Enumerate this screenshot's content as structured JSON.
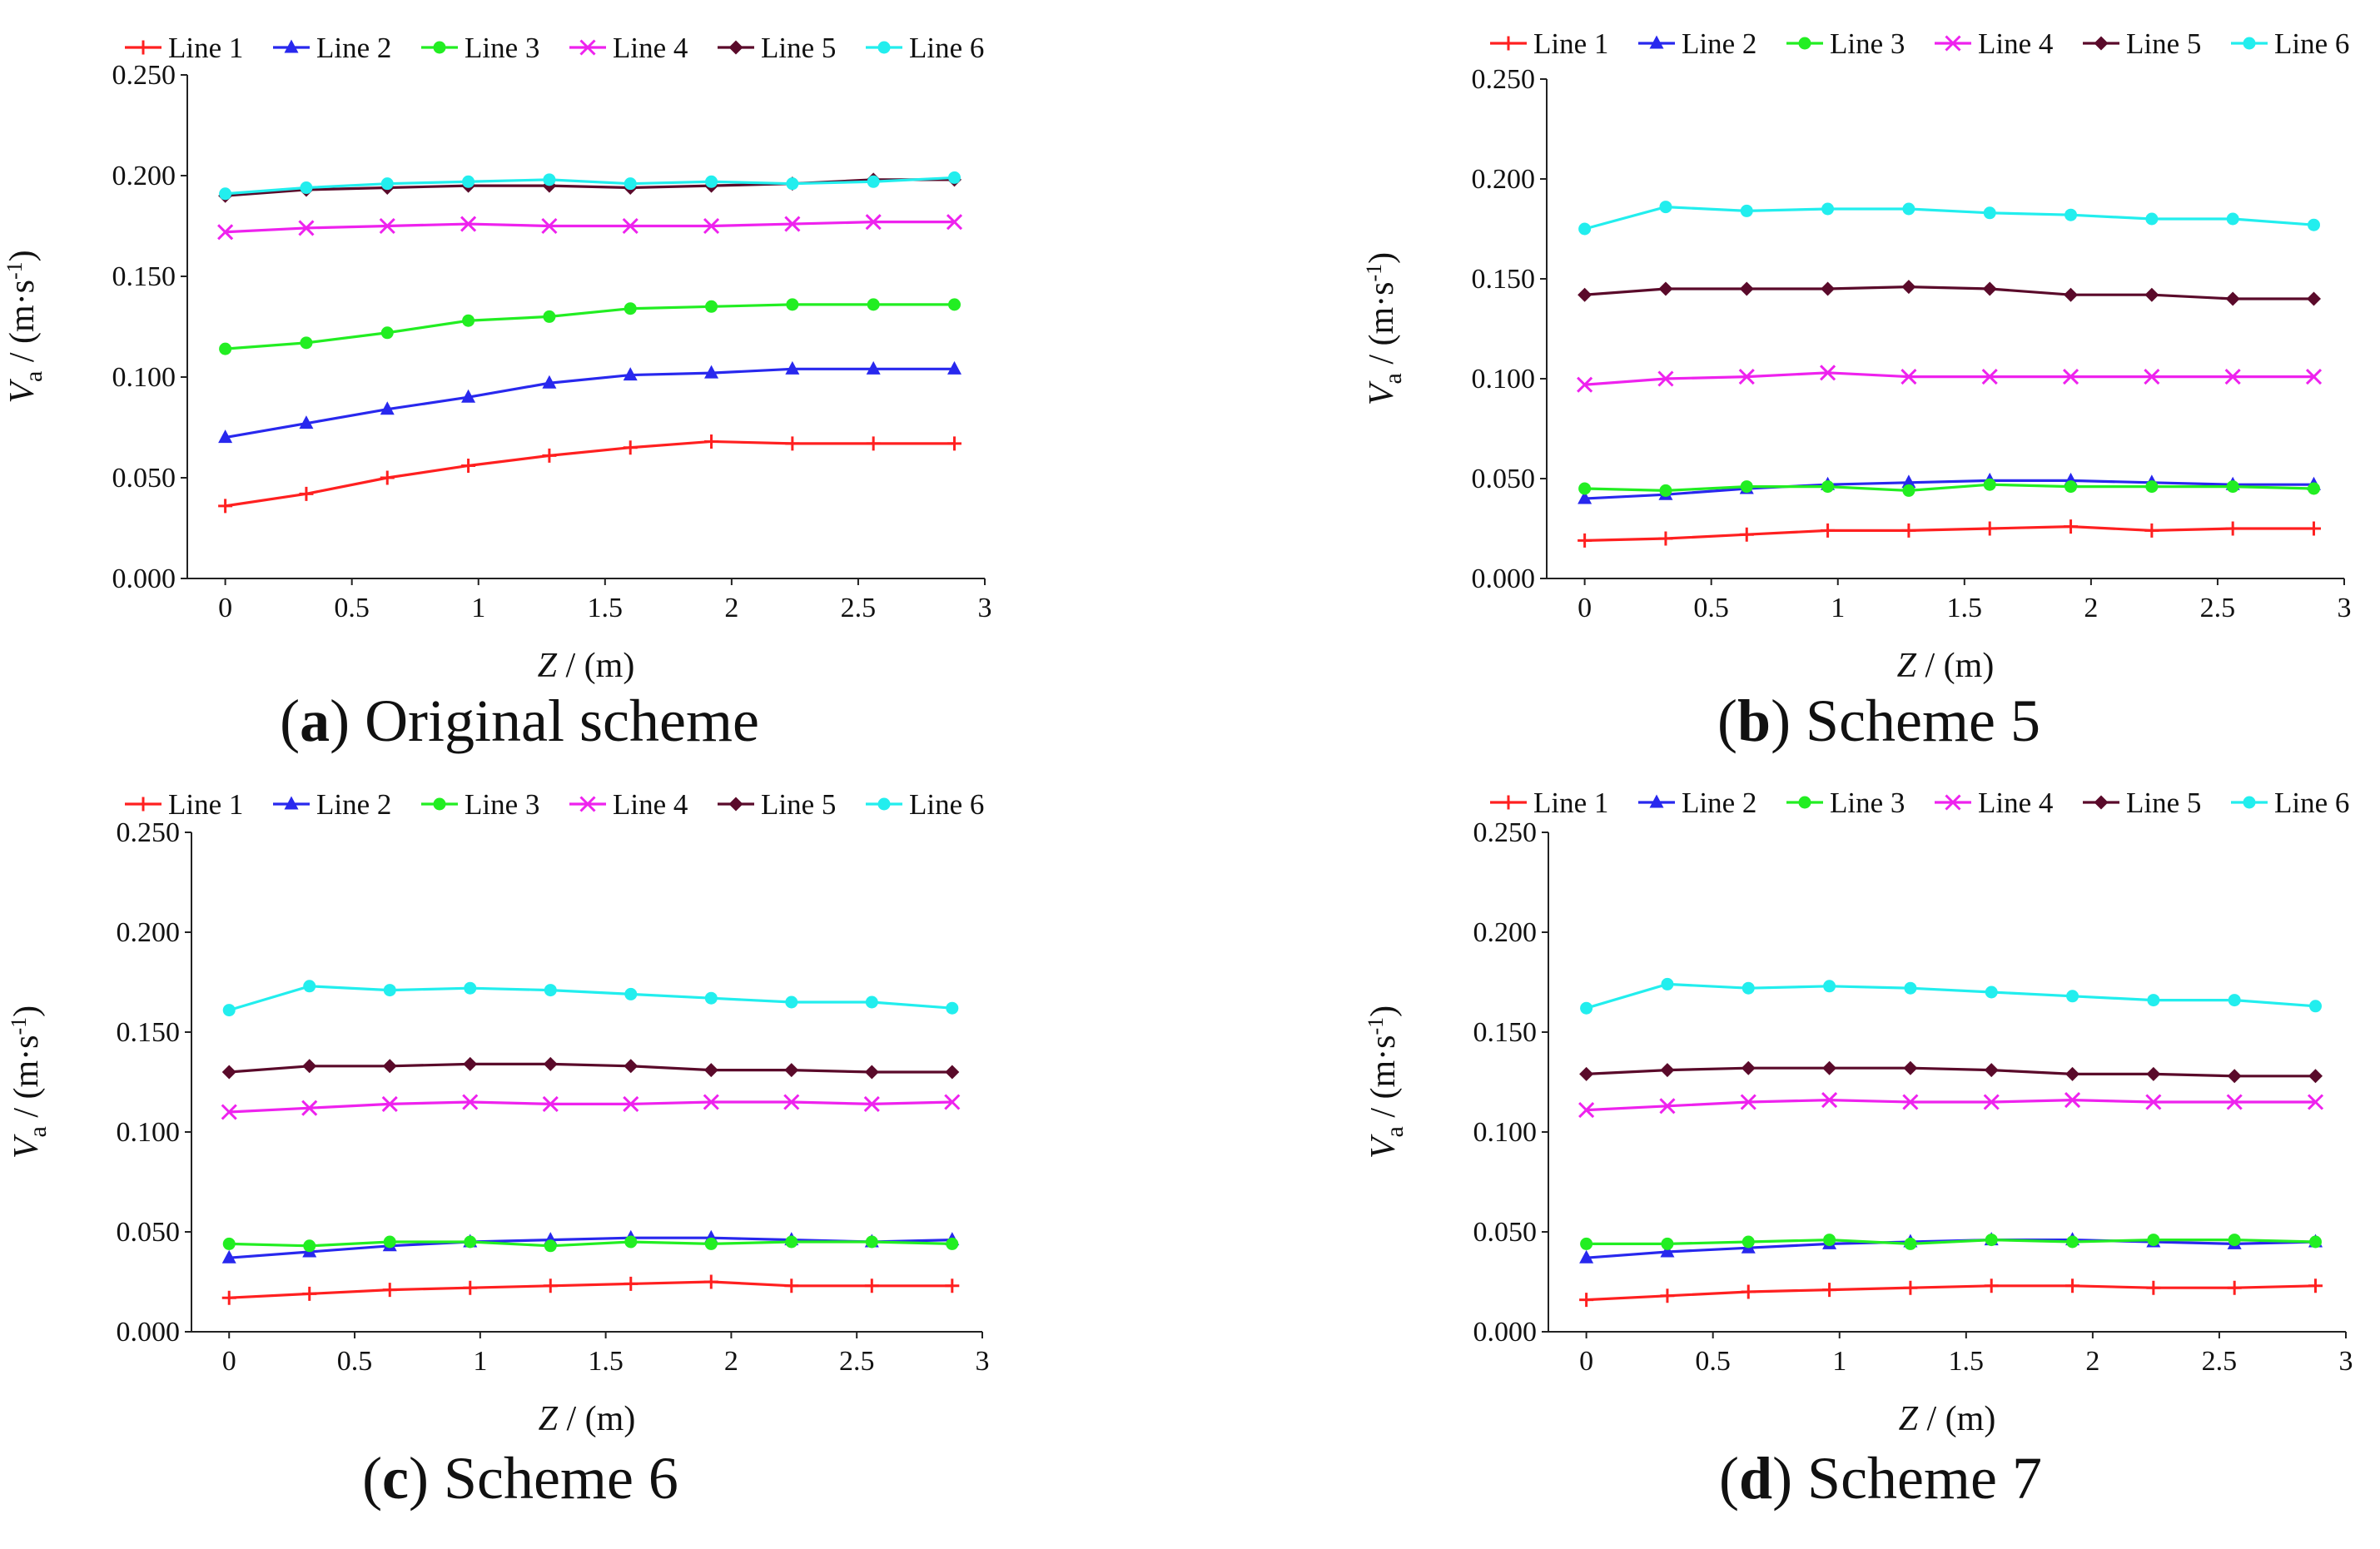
{
  "figure": {
    "panels": [
      {
        "letter": "a",
        "caption": "Original scheme"
      },
      {
        "letter": "b",
        "caption": "Scheme 5"
      },
      {
        "letter": "c",
        "caption": "Scheme 6"
      },
      {
        "letter": "d",
        "caption": "Scheme 7"
      }
    ],
    "xlabel_var": "Z",
    "xlabel_unit": " / (m)",
    "ylabel_var": "V",
    "ylabel_sub": "a",
    "ylabel_unit": " / (m·s",
    "ylabel_exp": "-1",
    "ylabel_close": ")"
  },
  "series_styles": [
    {
      "name": "Line 1",
      "color": "#ff2020",
      "marker": "plus"
    },
    {
      "name": "Line 2",
      "color": "#2828ee",
      "marker": "triangle"
    },
    {
      "name": "Line 3",
      "color": "#22ee22",
      "marker": "circle"
    },
    {
      "name": "Line 4",
      "color": "#ee22ee",
      "marker": "cross"
    },
    {
      "name": "Line 5",
      "color": "#5a0a2a",
      "marker": "diamond"
    },
    {
      "name": "Line 6",
      "color": "#22eeee",
      "marker": "circle"
    }
  ],
  "chart_data": [
    {
      "type": "line",
      "title": "(a) Original scheme",
      "xlabel": "Z / (m)",
      "ylabel": "Va / (m·s-1)",
      "xlim": [
        -0.15,
        3
      ],
      "ylim": [
        0,
        0.25
      ],
      "xticks": [
        0,
        0.5,
        1,
        1.5,
        2,
        2.5,
        3
      ],
      "xtick_labels": [
        "0",
        "0.5",
        "1",
        "1.5",
        "2",
        "2.5",
        "3"
      ],
      "yticks": [
        0,
        0.05,
        0.1,
        0.15,
        0.2,
        0.25
      ],
      "ytick_labels": [
        "0.000",
        "0.050",
        "0.100",
        "0.150",
        "0.200",
        "0.250"
      ],
      "legend": "top",
      "x": [
        0,
        0.32,
        0.64,
        0.96,
        1.28,
        1.6,
        1.92,
        2.24,
        2.56,
        2.88
      ],
      "series": [
        {
          "name": "Line 1",
          "values": [
            0.036,
            0.042,
            0.05,
            0.056,
            0.061,
            0.065,
            0.068,
            0.067,
            0.067,
            0.067
          ]
        },
        {
          "name": "Line 2",
          "values": [
            0.07,
            0.077,
            0.084,
            0.09,
            0.097,
            0.101,
            0.102,
            0.104,
            0.104,
            0.104
          ]
        },
        {
          "name": "Line 3",
          "values": [
            0.114,
            0.117,
            0.122,
            0.128,
            0.13,
            0.134,
            0.135,
            0.136,
            0.136,
            0.136
          ]
        },
        {
          "name": "Line 4",
          "values": [
            0.172,
            0.174,
            0.175,
            0.176,
            0.175,
            0.175,
            0.175,
            0.176,
            0.177,
            0.177
          ]
        },
        {
          "name": "Line 5",
          "values": [
            0.19,
            0.193,
            0.194,
            0.195,
            0.195,
            0.194,
            0.195,
            0.196,
            0.198,
            0.198
          ]
        },
        {
          "name": "Line 6",
          "values": [
            0.191,
            0.194,
            0.196,
            0.197,
            0.198,
            0.196,
            0.197,
            0.196,
            0.197,
            0.199
          ]
        }
      ]
    },
    {
      "type": "line",
      "title": "(b) Scheme 5",
      "xlabel": "Z / (m)",
      "ylabel": "Va / (m·s-1)",
      "xlim": [
        -0.15,
        3
      ],
      "ylim": [
        0,
        0.25
      ],
      "xticks": [
        0,
        0.5,
        1,
        1.5,
        2,
        2.5,
        3
      ],
      "xtick_labels": [
        "0",
        "0.5",
        "1",
        "1.5",
        "2",
        "2.5",
        "3"
      ],
      "yticks": [
        0,
        0.05,
        0.1,
        0.15,
        0.2,
        0.25
      ],
      "ytick_labels": [
        "0.000",
        "0.050",
        "0.100",
        "0.150",
        "0.200",
        "0.250"
      ],
      "legend": "top",
      "x": [
        0,
        0.32,
        0.64,
        0.96,
        1.28,
        1.6,
        1.92,
        2.24,
        2.56,
        2.88
      ],
      "series": [
        {
          "name": "Line 1",
          "values": [
            0.019,
            0.02,
            0.022,
            0.024,
            0.024,
            0.025,
            0.026,
            0.024,
            0.025,
            0.025
          ]
        },
        {
          "name": "Line 2",
          "values": [
            0.04,
            0.042,
            0.045,
            0.047,
            0.048,
            0.049,
            0.049,
            0.048,
            0.047,
            0.047
          ]
        },
        {
          "name": "Line 3",
          "values": [
            0.045,
            0.044,
            0.046,
            0.046,
            0.044,
            0.047,
            0.046,
            0.046,
            0.046,
            0.045
          ]
        },
        {
          "name": "Line 4",
          "values": [
            0.097,
            0.1,
            0.101,
            0.103,
            0.101,
            0.101,
            0.101,
            0.101,
            0.101,
            0.101
          ]
        },
        {
          "name": "Line 5",
          "values": [
            0.142,
            0.145,
            0.145,
            0.145,
            0.146,
            0.145,
            0.142,
            0.142,
            0.14,
            0.14
          ]
        },
        {
          "name": "Line 6",
          "values": [
            0.175,
            0.186,
            0.184,
            0.185,
            0.185,
            0.183,
            0.182,
            0.18,
            0.18,
            0.177
          ]
        }
      ]
    },
    {
      "type": "line",
      "title": "(c) Scheme 6",
      "xlabel": "Z / (m)",
      "ylabel": "Va / (m·s-1)",
      "xlim": [
        -0.15,
        3
      ],
      "ylim": [
        0,
        0.25
      ],
      "xticks": [
        0,
        0.5,
        1,
        1.5,
        2,
        2.5,
        3
      ],
      "xtick_labels": [
        "0",
        "0.5",
        "1",
        "1.5",
        "2",
        "2.5",
        "3"
      ],
      "yticks": [
        0,
        0.05,
        0.1,
        0.15,
        0.2,
        0.25
      ],
      "ytick_labels": [
        "0.000",
        "0.050",
        "0.100",
        "0.150",
        "0.200",
        "0.250"
      ],
      "legend": "top",
      "x": [
        0,
        0.32,
        0.64,
        0.96,
        1.28,
        1.6,
        1.92,
        2.24,
        2.56,
        2.88
      ],
      "series": [
        {
          "name": "Line 1",
          "values": [
            0.017,
            0.019,
            0.021,
            0.022,
            0.023,
            0.024,
            0.025,
            0.023,
            0.023,
            0.023
          ]
        },
        {
          "name": "Line 2",
          "values": [
            0.037,
            0.04,
            0.043,
            0.045,
            0.046,
            0.047,
            0.047,
            0.046,
            0.045,
            0.046
          ]
        },
        {
          "name": "Line 3",
          "values": [
            0.044,
            0.043,
            0.045,
            0.045,
            0.043,
            0.045,
            0.044,
            0.045,
            0.045,
            0.044
          ]
        },
        {
          "name": "Line 4",
          "values": [
            0.11,
            0.112,
            0.114,
            0.115,
            0.114,
            0.114,
            0.115,
            0.115,
            0.114,
            0.115
          ]
        },
        {
          "name": "Line 5",
          "values": [
            0.13,
            0.133,
            0.133,
            0.134,
            0.134,
            0.133,
            0.131,
            0.131,
            0.13,
            0.13
          ]
        },
        {
          "name": "Line 6",
          "values": [
            0.161,
            0.173,
            0.171,
            0.172,
            0.171,
            0.169,
            0.167,
            0.165,
            0.165,
            0.162
          ]
        }
      ]
    },
    {
      "type": "line",
      "title": "(d) Scheme 7",
      "xlabel": "Z / (m)",
      "ylabel": "Va / (m·s-1)",
      "xlim": [
        -0.15,
        3
      ],
      "ylim": [
        0,
        0.25
      ],
      "xticks": [
        0,
        0.5,
        1,
        1.5,
        2,
        2.5,
        3
      ],
      "xtick_labels": [
        "0",
        "0.5",
        "1",
        "1.5",
        "2",
        "2.5",
        "3"
      ],
      "yticks": [
        0,
        0.05,
        0.1,
        0.15,
        0.2,
        0.25
      ],
      "ytick_labels": [
        "0.000",
        "0.050",
        "0.100",
        "0.150",
        "0.200",
        "0.250"
      ],
      "legend": "top",
      "x": [
        0,
        0.32,
        0.64,
        0.96,
        1.28,
        1.6,
        1.92,
        2.24,
        2.56,
        2.88
      ],
      "series": [
        {
          "name": "Line 1",
          "values": [
            0.016,
            0.018,
            0.02,
            0.021,
            0.022,
            0.023,
            0.023,
            0.022,
            0.022,
            0.023
          ]
        },
        {
          "name": "Line 2",
          "values": [
            0.037,
            0.04,
            0.042,
            0.044,
            0.045,
            0.046,
            0.046,
            0.045,
            0.044,
            0.045
          ]
        },
        {
          "name": "Line 3",
          "values": [
            0.044,
            0.044,
            0.045,
            0.046,
            0.044,
            0.046,
            0.045,
            0.046,
            0.046,
            0.045
          ]
        },
        {
          "name": "Line 4",
          "values": [
            0.111,
            0.113,
            0.115,
            0.116,
            0.115,
            0.115,
            0.116,
            0.115,
            0.115,
            0.115
          ]
        },
        {
          "name": "Line 5",
          "values": [
            0.129,
            0.131,
            0.132,
            0.132,
            0.132,
            0.131,
            0.129,
            0.129,
            0.128,
            0.128
          ]
        },
        {
          "name": "Line 6",
          "values": [
            0.162,
            0.174,
            0.172,
            0.173,
            0.172,
            0.17,
            0.168,
            0.166,
            0.166,
            0.163
          ]
        }
      ]
    }
  ]
}
